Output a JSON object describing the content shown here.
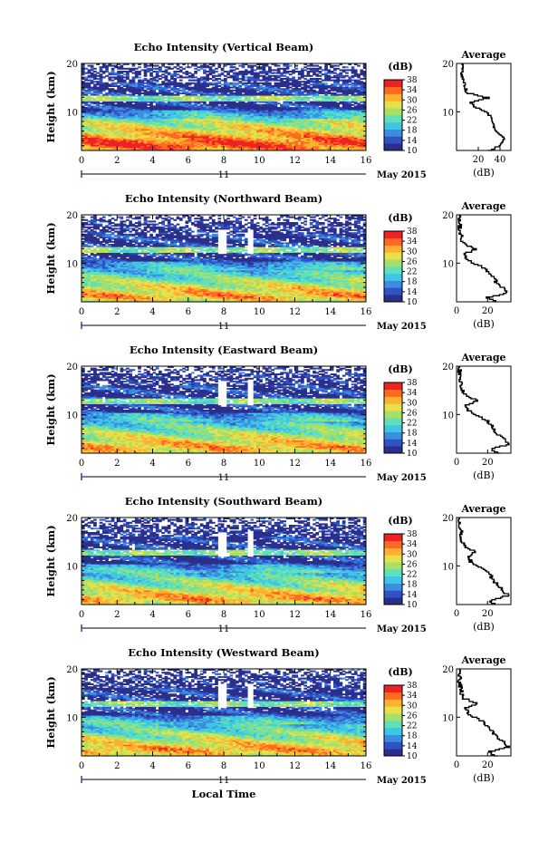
{
  "figure": {
    "ylabel": "Height (km)",
    "xlabel": "Local Time",
    "date_label": "11",
    "month_label": "May 2015",
    "colorbar_unit": "(dB)",
    "colorbar_ticks": [
      "10",
      "14",
      "18",
      "22",
      "26",
      "30",
      "34",
      "38"
    ],
    "avg_title": "Average",
    "avg_xlabel": "(dB)"
  },
  "colors": {
    "colormap": [
      "#2a2f8c",
      "#2f52c4",
      "#3c8ce0",
      "#3fc6e6",
      "#5fe0b8",
      "#a6e06a",
      "#e6e04a",
      "#ffb030",
      "#ff6a20",
      "#ee2222"
    ],
    "no_data": "#ffffff"
  },
  "chart_data": [
    {
      "type": "heatmap",
      "title": "Echo Intensity (Vertical Beam)",
      "x_ticks": [
        "0",
        "2",
        "4",
        "6",
        "8",
        "10",
        "12",
        "14",
        "16"
      ],
      "y_ticks": [
        "10",
        "20"
      ],
      "xlim": [
        0,
        16
      ],
      "ylim": [
        2,
        20
      ],
      "clim": [
        10,
        38
      ],
      "avg_ticks": [
        "20",
        "40"
      ],
      "avg_xlim": [
        0,
        50
      ],
      "avg_profile": {
        "height": [
          2,
          3,
          4,
          5,
          6,
          7,
          8,
          9,
          10,
          11,
          12,
          13,
          14,
          15,
          16,
          17,
          18,
          19,
          20
        ],
        "db": [
          30,
          38,
          44,
          42,
          37,
          34,
          33,
          31,
          29,
          18,
          12,
          30,
          10,
          8,
          7,
          6,
          5,
          5,
          5
        ]
      }
    },
    {
      "type": "heatmap",
      "title": "Echo Intensity (Northward Beam)",
      "x_ticks": [
        "0",
        "2",
        "4",
        "6",
        "8",
        "10",
        "12",
        "14",
        "16"
      ],
      "y_ticks": [
        "10",
        "20"
      ],
      "xlim": [
        0,
        16
      ],
      "ylim": [
        2,
        20
      ],
      "clim": [
        10,
        38
      ],
      "avg_ticks": [
        "0",
        "20"
      ],
      "avg_xlim": [
        0,
        35
      ],
      "avg_profile": {
        "height": [
          2,
          3,
          4,
          5,
          6,
          7,
          8,
          9,
          10,
          11,
          12,
          13,
          14,
          15,
          16,
          17,
          18,
          19,
          20
        ],
        "db": [
          26,
          20,
          33,
          30,
          26,
          24,
          22,
          18,
          12,
          6,
          5,
          12,
          5,
          3,
          3,
          2,
          2,
          2,
          2
        ]
      }
    },
    {
      "type": "heatmap",
      "title": "Echo Intensity (Eastward Beam)",
      "x_ticks": [
        "0",
        "2",
        "4",
        "6",
        "8",
        "10",
        "12",
        "14",
        "16"
      ],
      "y_ticks": [
        "10",
        "20"
      ],
      "xlim": [
        0,
        16
      ],
      "ylim": [
        2,
        20
      ],
      "clim": [
        10,
        38
      ],
      "avg_ticks": [
        "0",
        "20"
      ],
      "avg_xlim": [
        0,
        35
      ],
      "avg_profile": {
        "height": [
          2,
          3,
          4,
          5,
          6,
          7,
          8,
          9,
          10,
          11,
          12,
          13,
          14,
          15,
          16,
          17,
          18,
          19,
          20
        ],
        "db": [
          28,
          22,
          34,
          31,
          27,
          24,
          22,
          19,
          13,
          7,
          6,
          14,
          6,
          4,
          3,
          3,
          2,
          2,
          2
        ]
      }
    },
    {
      "type": "heatmap",
      "title": "Echo Intensity (Southward Beam)",
      "x_ticks": [
        "0",
        "2",
        "4",
        "6",
        "8",
        "10",
        "12",
        "14",
        "16"
      ],
      "y_ticks": [
        "10",
        "20"
      ],
      "xlim": [
        0,
        16
      ],
      "ylim": [
        2,
        20
      ],
      "clim": [
        10,
        38
      ],
      "avg_ticks": [
        "0",
        "20"
      ],
      "avg_xlim": [
        0,
        35
      ],
      "avg_profile": {
        "height": [
          2,
          3,
          4,
          5,
          6,
          7,
          8,
          9,
          10,
          11,
          12,
          13,
          14,
          15,
          16,
          17,
          18,
          19,
          20
        ],
        "db": [
          25,
          22,
          33,
          30,
          27,
          24,
          22,
          19,
          14,
          9,
          8,
          12,
          6,
          4,
          3,
          3,
          2,
          2,
          2
        ]
      }
    },
    {
      "type": "heatmap",
      "title": "Echo Intensity (Westward Beam)",
      "x_ticks": [
        "0",
        "2",
        "4",
        "6",
        "8",
        "10",
        "12",
        "14",
        "16"
      ],
      "y_ticks": [
        "10",
        "20"
      ],
      "xlim": [
        0,
        16
      ],
      "ylim": [
        2,
        20
      ],
      "clim": [
        10,
        38
      ],
      "avg_ticks": [
        "0",
        "20"
      ],
      "avg_xlim": [
        0,
        35
      ],
      "avg_profile": {
        "height": [
          2,
          3,
          4,
          5,
          6,
          7,
          8,
          9,
          10,
          11,
          12,
          13,
          14,
          15,
          16,
          17,
          18,
          19,
          20
        ],
        "db": [
          26,
          21,
          33,
          30,
          26,
          23,
          21,
          18,
          12,
          7,
          6,
          13,
          5,
          3,
          3,
          2,
          2,
          2,
          2
        ]
      }
    }
  ]
}
